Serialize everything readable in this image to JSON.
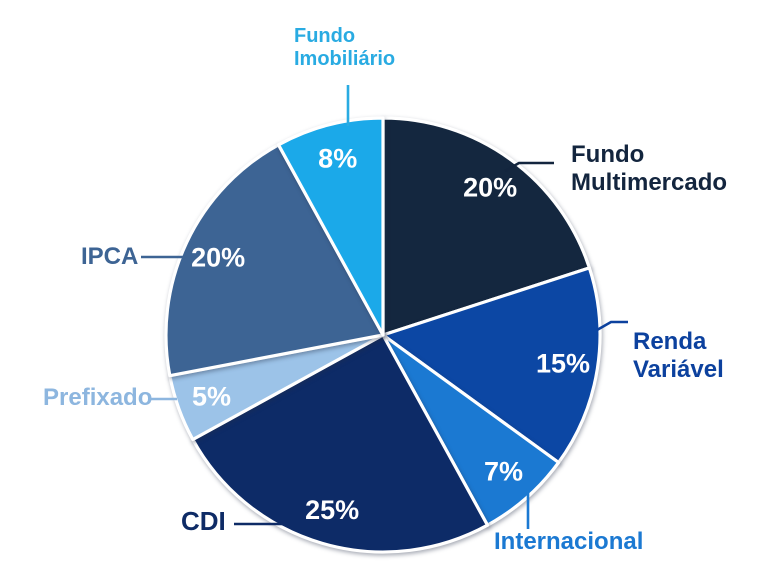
{
  "chart_data": {
    "type": "pie",
    "title": "",
    "unit": "%",
    "direction": "clockwise",
    "start_angle_deg": 0,
    "legend": "none",
    "labels_position": "outside-with-connectors",
    "value_label_color": "#FFFFFF",
    "background_color": "#FFFFFF",
    "categories": [
      "Fundo Multimercado",
      "Renda Variável",
      "Internacional",
      "CDI",
      "Prefixado",
      "IPCA",
      "Fundo Imobiliário"
    ],
    "values": [
      20,
      15,
      7,
      25,
      5,
      20,
      8
    ],
    "slices": [
      {
        "label": "Fundo Multimercado",
        "display": "Fundo\nMultimercado",
        "value": 20,
        "pct_label": "20%",
        "color": "#14273F",
        "label_color": "#13253E"
      },
      {
        "label": "Renda Variável",
        "display": "Renda\nVariável",
        "value": 15,
        "pct_label": "15%",
        "color": "#0C47A4",
        "label_color": "#0C419E"
      },
      {
        "label": "Internacional",
        "display": "Internacional",
        "value": 7,
        "pct_label": "7%",
        "color": "#1B79D2",
        "label_color": "#1B79D2"
      },
      {
        "label": "CDI",
        "display": "CDI",
        "value": 25,
        "pct_label": "25%",
        "color": "#0D2B67",
        "label_color": "#0E2B66"
      },
      {
        "label": "Prefixado",
        "display": "Prefixado",
        "value": 5,
        "pct_label": "5%",
        "color": "#9CC3E8",
        "label_color": "#8DB6DF"
      },
      {
        "label": "IPCA",
        "display": "IPCA",
        "value": 20,
        "pct_label": "20%",
        "color": "#3D6494",
        "label_color": "#3D6494"
      },
      {
        "label": "Fundo Imobiliário",
        "display": "Fundo\nImobiliário",
        "value": 8,
        "pct_label": "8%",
        "color": "#1BA9E9",
        "label_color": "#29ABE2"
      }
    ]
  }
}
